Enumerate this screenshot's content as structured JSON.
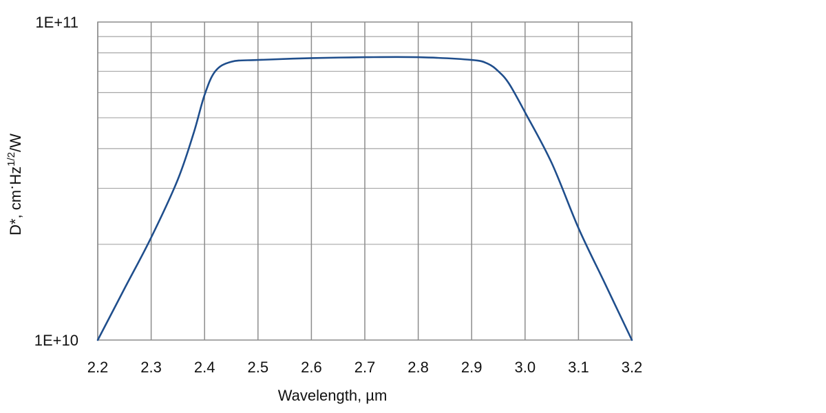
{
  "chart_data": {
    "type": "line",
    "xlabel": "Wavelength, µm",
    "ylabel": {
      "prefix": "D*, cm",
      "dot": "·",
      "hz": "Hz",
      "sup": "1/2",
      "suffix": "/W"
    },
    "x_ticks": [
      "2.2",
      "2.3",
      "2.4",
      "2.5",
      "2.6",
      "2.7",
      "2.8",
      "2.9",
      "3.0",
      "3.1",
      "3.2"
    ],
    "xlim": [
      2.2,
      3.2
    ],
    "y_scale": "log",
    "ylim": [
      10000000000.0,
      100000000000.0
    ],
    "y_ticks": [
      {
        "value": 10000000000.0,
        "label": "1E+10"
      },
      {
        "value": 100000000000.0,
        "label": "1E+11"
      }
    ],
    "y_minor_gridlines": [
      20000000000.0,
      30000000000.0,
      40000000000.0,
      50000000000.0,
      60000000000.0,
      70000000000.0,
      80000000000.0,
      90000000000.0
    ],
    "grid": true,
    "line_color": "#1f4e8c",
    "grid_color": "#a6a6a6",
    "series": [
      {
        "x": [
          2.2,
          2.25,
          2.3,
          2.35,
          2.38,
          2.4,
          2.42,
          2.45,
          2.5,
          2.6,
          2.7,
          2.8,
          2.9,
          2.93,
          2.95,
          2.97,
          3.0,
          3.05,
          3.1,
          3.15,
          3.2
        ],
        "y": [
          10000000000.0,
          14500000000.0,
          21000000000.0,
          32000000000.0,
          45000000000.0,
          59000000000.0,
          70000000000.0,
          75000000000.0,
          76000000000.0,
          77000000000.0,
          77500000000.0,
          77500000000.0,
          76000000000.0,
          74000000000.0,
          70000000000.0,
          64000000000.0,
          52000000000.0,
          36000000000.0,
          22500000000.0,
          15000000000.0,
          10000000000.0
        ]
      }
    ]
  }
}
